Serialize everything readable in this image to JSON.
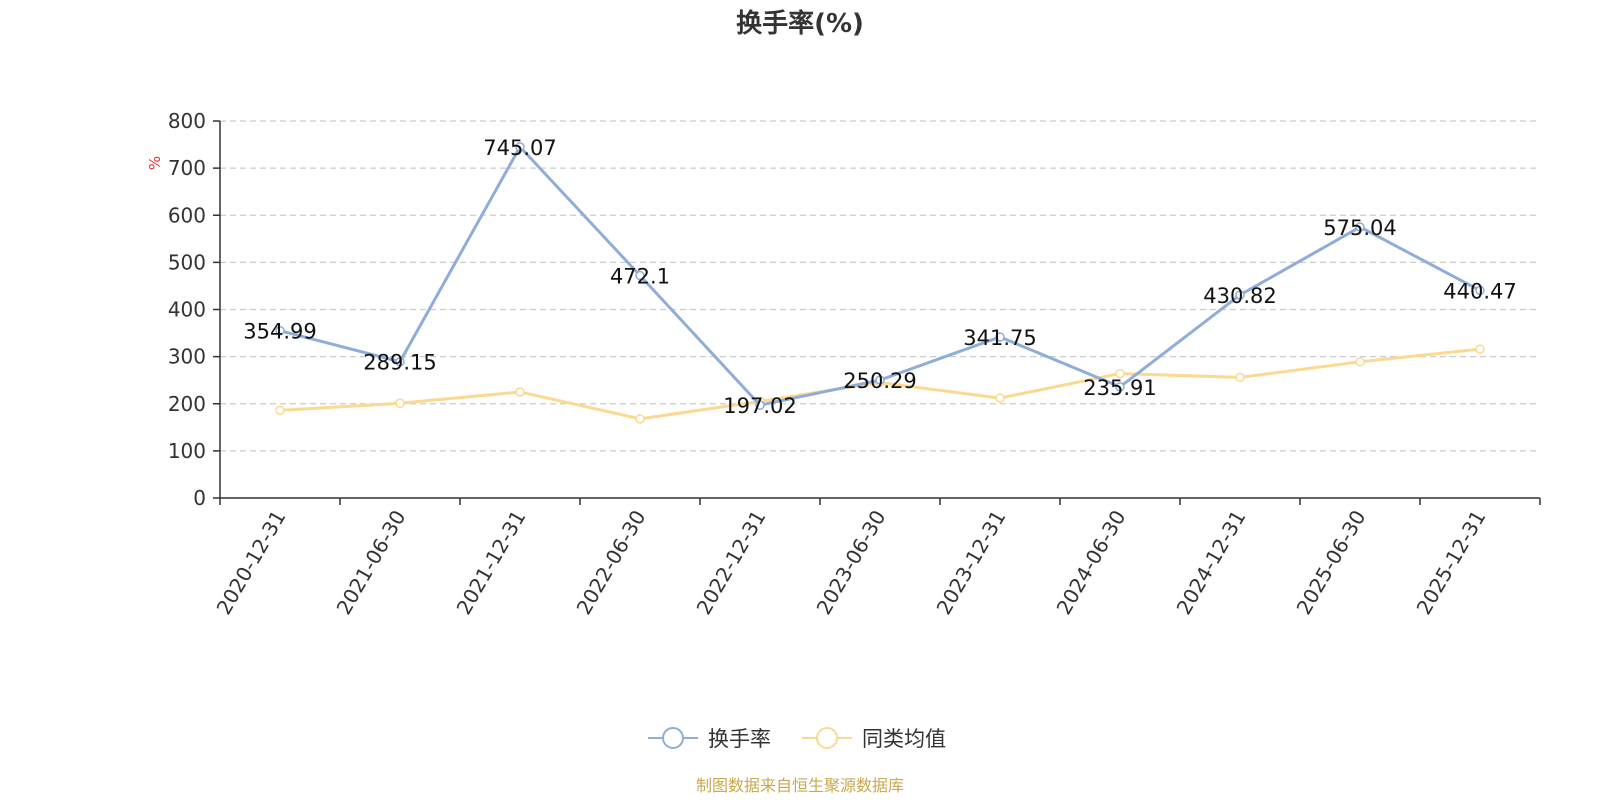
{
  "chart_data": {
    "type": "line",
    "title": "换手率(%)",
    "ylabel": "%",
    "ylim": [
      0,
      800
    ],
    "yticks": [
      0,
      100,
      200,
      300,
      400,
      500,
      600,
      700,
      800
    ],
    "grid": true,
    "legend_position": "bottom",
    "categories": [
      "2020-12-31",
      "2021-06-30",
      "2021-12-31",
      "2022-06-30",
      "2022-12-31",
      "2023-06-30",
      "2023-12-31",
      "2024-06-30",
      "2024-12-31",
      "2025-06-30",
      "2025-12-31"
    ],
    "series": [
      {
        "name": "换手率",
        "color": "#8eadd8",
        "values": [
          354.99,
          289.15,
          745.07,
          472.1,
          197.02,
          250.29,
          341.75,
          235.91,
          430.82,
          575.04,
          440.47
        ],
        "labels": [
          "354.99",
          "289.15",
          "745.07",
          "472.1",
          "197.02",
          "250.29",
          "341.75",
          "235.91",
          "430.82",
          "575.04",
          "440.47"
        ]
      },
      {
        "name": "同类均值",
        "color": "#fcd990",
        "values": [
          186,
          201,
          225,
          168,
          205,
          245,
          212,
          264,
          256,
          289,
          316
        ]
      }
    ],
    "source": "制图数据来自恒生聚源数据库",
    "colors": {
      "axis": "#333333",
      "grid": "#cccccc",
      "unit": "#e8302c",
      "source": "#c9a94e"
    }
  }
}
